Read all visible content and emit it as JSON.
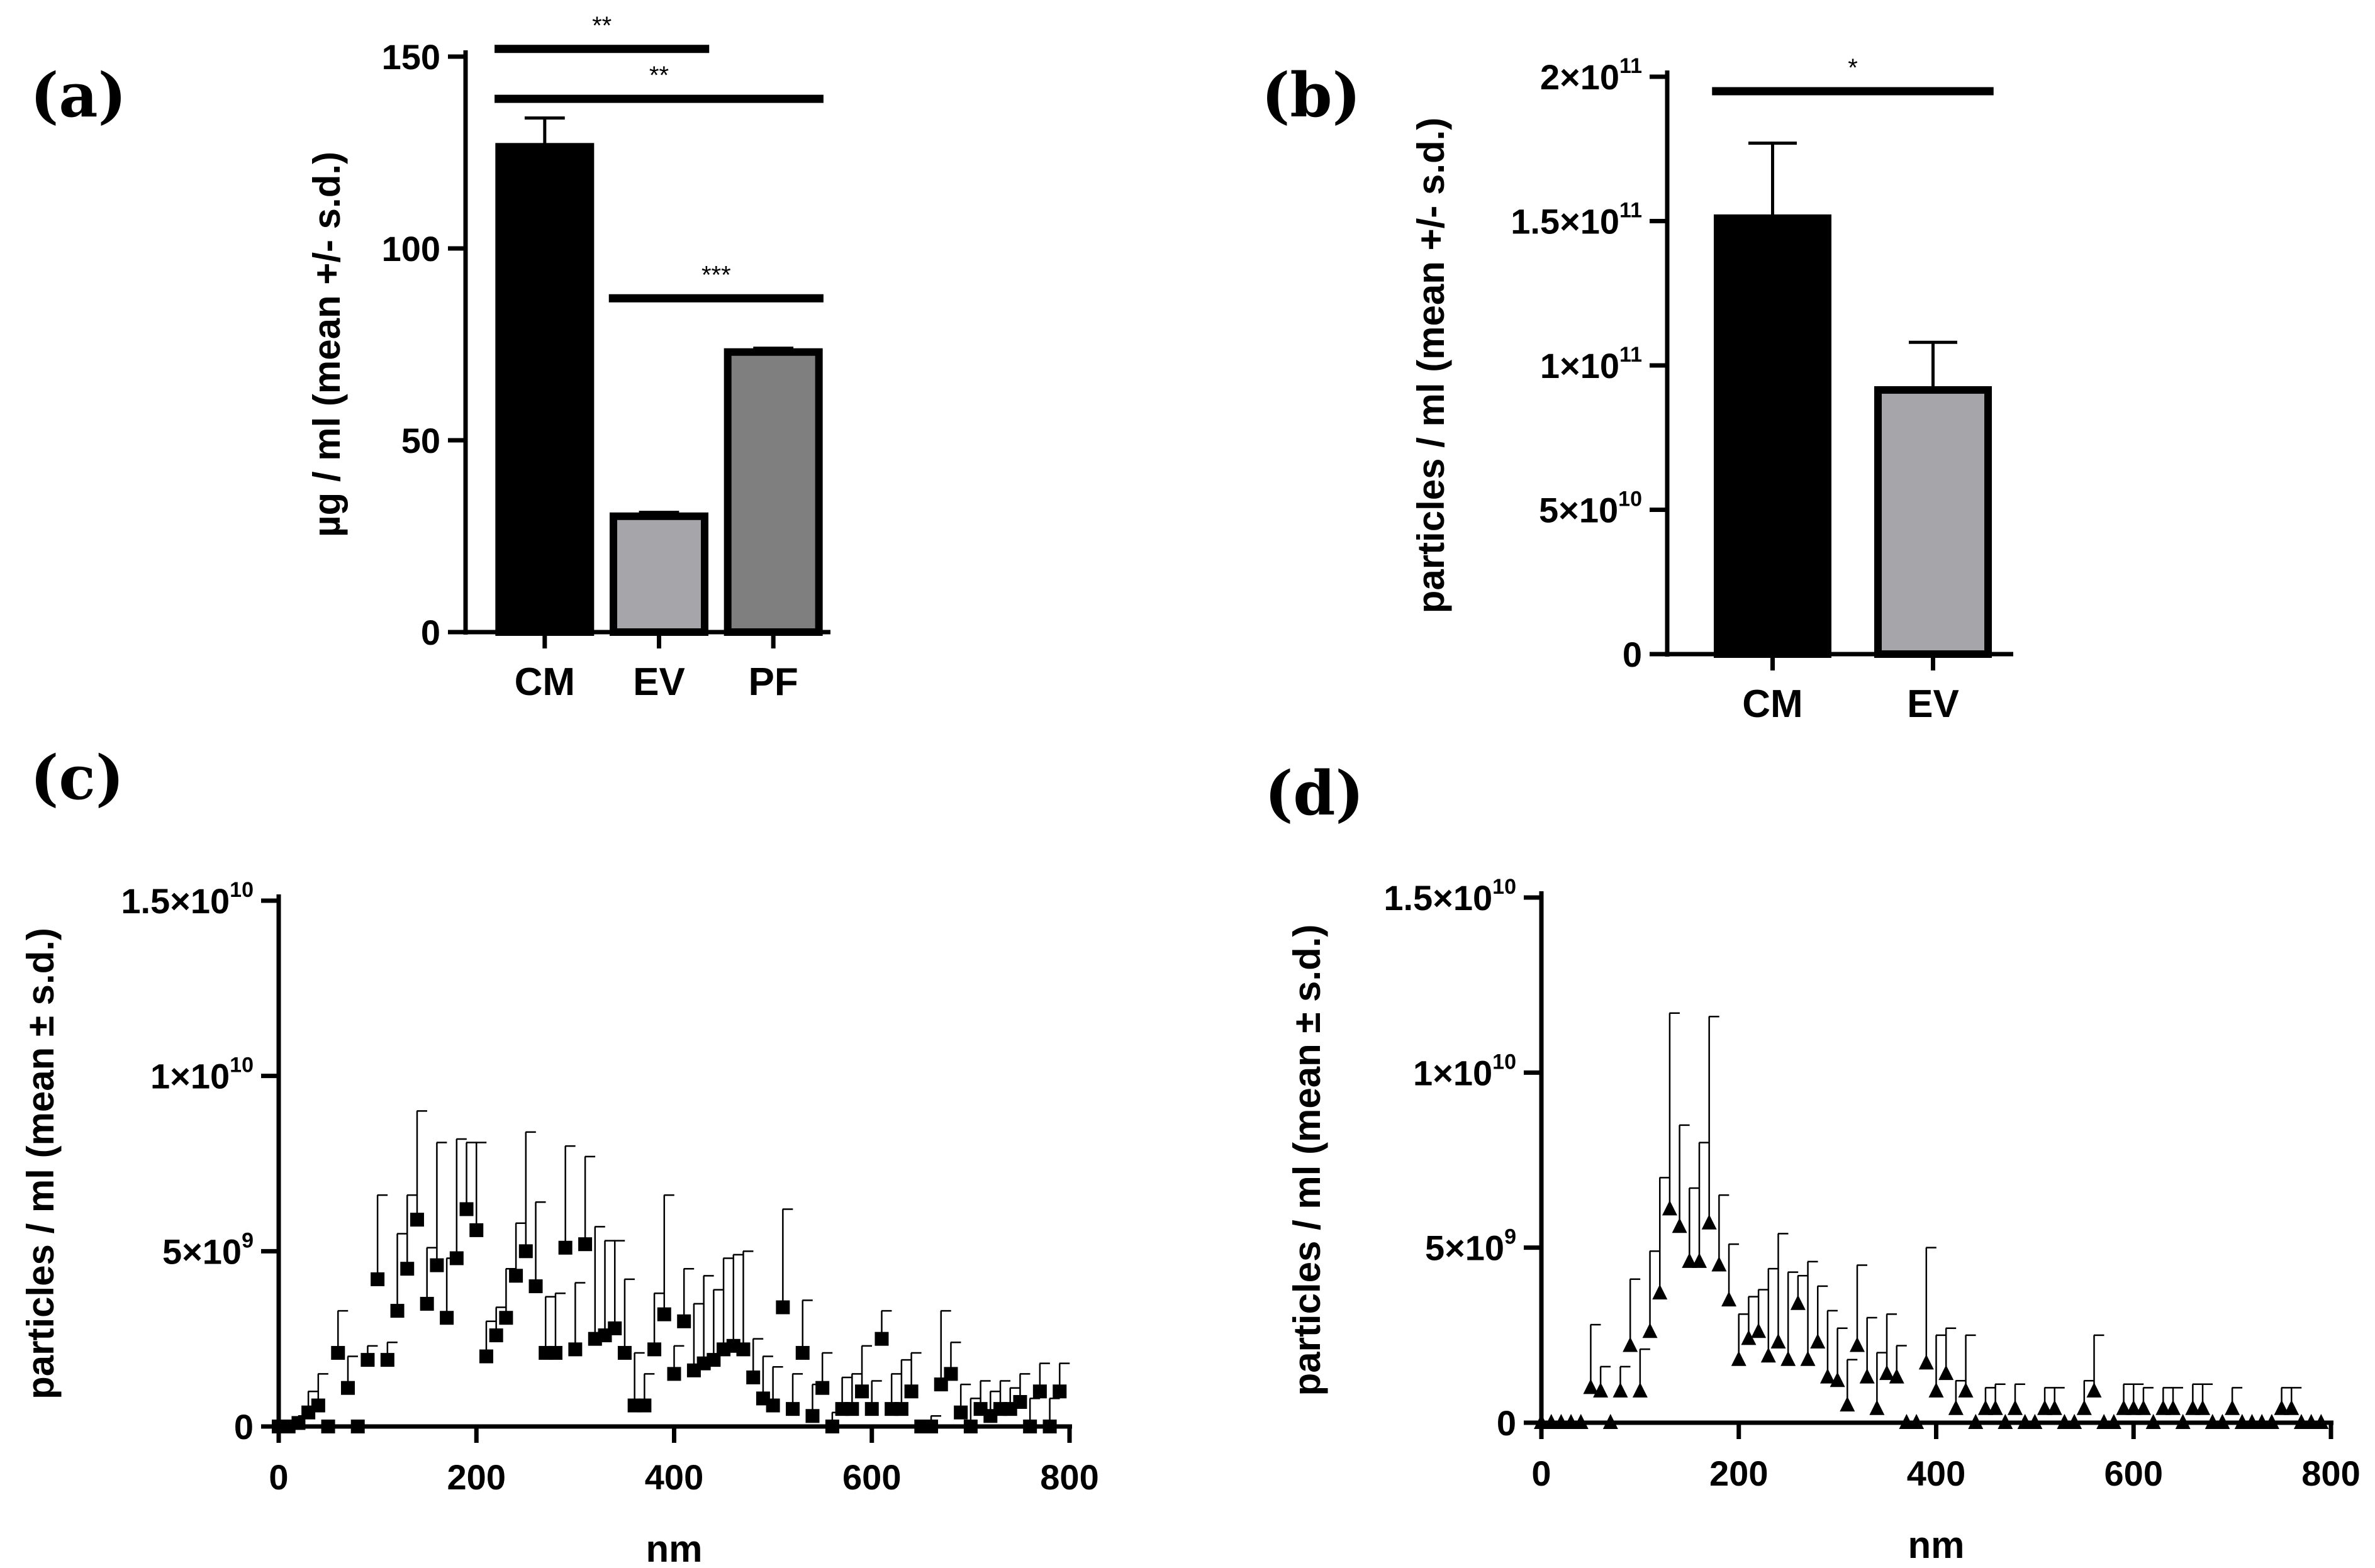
{
  "panels": [
    "(a)",
    "(b)",
    "(c)",
    "(d)"
  ],
  "chart_data": [
    {
      "type": "bar",
      "panel": "(a)",
      "categories": [
        "CM",
        "EV",
        "PF"
      ],
      "values": [
        126.5,
        30.2,
        73.0
      ],
      "errors": [
        7.5,
        1.0,
        1.0
      ],
      "colors": [
        "#000000",
        "#a6a6aa",
        "#7f7f7f"
      ],
      "ylabel": "µg / ml (mean +/- s.d.)",
      "ylim": [
        0,
        150
      ],
      "yticks": [
        0,
        50,
        100,
        150
      ],
      "ytick_labels": [
        "0",
        "50",
        "100",
        "150"
      ],
      "significance": [
        {
          "from": 0,
          "to": 1,
          "label": "**",
          "y": 152
        },
        {
          "from": 0,
          "to": 2,
          "label": "**",
          "y": 139
        },
        {
          "from": 1,
          "to": 2,
          "label": "***",
          "y": 87
        }
      ]
    },
    {
      "type": "bar",
      "panel": "(b)",
      "categories": [
        "CM",
        "EV"
      ],
      "values": [
        151000000000.0,
        91500000000.0
      ],
      "errors": [
        26000000000.0,
        16500000000.0
      ],
      "colors": [
        "#000000",
        "#a6a6aa"
      ],
      "ylabel": "particles / ml (mean +/- s.d.)",
      "ylim": [
        0,
        200000000000.0
      ],
      "yticks": [
        0,
        50000000000.0,
        100000000000.0,
        150000000000.0,
        200000000000.0
      ],
      "ytick_labels": [
        {
          "base": "0",
          "exp": ""
        },
        {
          "base": "5×10",
          "exp": "10"
        },
        {
          "base": "1×10",
          "exp": "11"
        },
        {
          "base": "1.5×10",
          "exp": "11"
        },
        {
          "base": "2×10",
          "exp": "11"
        }
      ],
      "significance": [
        {
          "from": 0,
          "to": 1,
          "label": "*",
          "y": 195000000000.0
        }
      ]
    },
    {
      "type": "scatter",
      "panel": "(c)",
      "marker": "square",
      "xlabel": "nm",
      "ylabel": "particles / ml (mean ± s.d.)",
      "xlim": [
        0,
        800
      ],
      "xticks": [
        0,
        200,
        400,
        600,
        800
      ],
      "ylim": [
        0,
        15000000000.0
      ],
      "yticks": [
        0,
        5000000000.0,
        10000000000.0,
        15000000000.0
      ],
      "ytick_labels": [
        {
          "base": "0",
          "exp": ""
        },
        {
          "base": "5×10",
          "exp": "9"
        },
        {
          "base": "1×10",
          "exp": "10"
        },
        {
          "base": "1.5×10",
          "exp": "10"
        }
      ],
      "x": [
        0,
        10,
        20,
        30,
        40,
        50,
        60,
        70,
        80,
        90,
        100,
        110,
        120,
        130,
        140,
        150,
        160,
        170,
        180,
        190,
        200,
        210,
        220,
        230,
        240,
        250,
        260,
        270,
        280,
        290,
        300,
        310,
        320,
        330,
        340,
        350,
        360,
        370,
        380,
        390,
        400,
        410,
        420,
        430,
        440,
        450,
        460,
        470,
        480,
        490,
        500,
        510,
        520,
        530,
        540,
        550,
        560,
        570,
        580,
        590,
        600,
        610,
        620,
        630,
        640,
        650,
        660,
        670,
        680,
        690,
        700,
        710,
        720,
        730,
        740,
        750,
        760,
        770,
        780,
        790
      ],
      "y": [
        0,
        0,
        100000000.0,
        400000000.0,
        600000000.0,
        0,
        2100000000.0,
        1100000000.0,
        0,
        1900000000.0,
        4200000000.0,
        1900000000.0,
        3300000000.0,
        4500000000.0,
        5900000000.0,
        3500000000.0,
        4600000000.0,
        3100000000.0,
        4800000000.0,
        6200000000.0,
        5600000000.0,
        2000000000.0,
        2600000000.0,
        3100000000.0,
        4300000000.0,
        5000000000.0,
        4000000000.0,
        2100000000.0,
        2100000000.0,
        5100000000.0,
        2200000000.0,
        5200000000.0,
        2500000000.0,
        2600000000.0,
        2800000000.0,
        2100000000.0,
        600000000.0,
        600000000.0,
        2200000000.0,
        3200000000.0,
        1500000000.0,
        3000000000.0,
        1600000000.0,
        1800000000.0,
        1900000000.0,
        2200000000.0,
        2300000000.0,
        2200000000.0,
        1400000000.0,
        800000000.0,
        600000000.0,
        3400000000.0,
        500000000.0,
        2100000000.0,
        300000000.0,
        1100000000.0,
        0,
        500000000.0,
        500000000.0,
        1000000000.0,
        500000000.0,
        2500000000.0,
        500000000.0,
        500000000.0,
        1000000000.0,
        0,
        0,
        1200000000.0,
        1500000000.0,
        400000000.0,
        0,
        500000000.0,
        300000000.0,
        500000000.0,
        500000000.0,
        700000000.0,
        0,
        1000000000.0,
        0,
        1000000000.0
      ],
      "err": [
        0,
        100000000.0,
        200000000.0,
        600000000.0,
        900000000.0,
        0,
        1200000000.0,
        900000000.0,
        0,
        400000000.0,
        2400000000.0,
        500000000.0,
        2200000000.0,
        2100000000.0,
        3100000000.0,
        1600000000.0,
        3500000000.0,
        1700000000.0,
        3400000000.0,
        1900000000.0,
        2500000000.0,
        1000000000.0,
        800000000.0,
        1400000000.0,
        1500000000.0,
        3400000000.0,
        2400000000.0,
        1600000000.0,
        1700000000.0,
        2900000000.0,
        1900000000.0,
        2500000000.0,
        3200000000.0,
        2700000000.0,
        2500000000.0,
        2100000000.0,
        1500000000.0,
        900000000.0,
        1600000000.0,
        3400000000.0,
        800000000.0,
        1500000000.0,
        1900000000.0,
        2500000000.0,
        2000000000.0,
        2600000000.0,
        2600000000.0,
        2800000000.0,
        1100000000.0,
        1200000000.0,
        1100000000.0,
        2800000000.0,
        1000000000.0,
        1500000000.0,
        900000000.0,
        1000000000.0,
        400000000.0,
        900000000.0,
        1000000000.0,
        1300000000.0,
        800000000.0,
        800000000.0,
        1000000000.0,
        1400000000.0,
        1100000000.0,
        0,
        300000000.0,
        2100000000.0,
        900000000.0,
        800000000.0,
        800000000.0,
        800000000.0,
        700000000.0,
        800000000.0,
        600000000.0,
        800000000.0,
        800000000.0,
        800000000.0,
        800000000.0,
        800000000.0
      ]
    },
    {
      "type": "scatter",
      "panel": "(d)",
      "marker": "triangle",
      "xlabel": "nm",
      "ylabel": "particles / ml (mean ± s.d.)",
      "xlim": [
        0,
        800
      ],
      "xticks": [
        0,
        200,
        400,
        600,
        800
      ],
      "ylim": [
        0,
        15000000000.0
      ],
      "yticks": [
        0,
        5000000000.0,
        10000000000.0,
        15000000000.0
      ],
      "ytick_labels": [
        {
          "base": "0",
          "exp": ""
        },
        {
          "base": "5×10",
          "exp": "9"
        },
        {
          "base": "1×10",
          "exp": "10"
        },
        {
          "base": "1.5×10",
          "exp": "10"
        }
      ],
      "x": [
        0,
        10,
        20,
        30,
        40,
        50,
        60,
        70,
        80,
        90,
        100,
        110,
        120,
        130,
        140,
        150,
        160,
        170,
        180,
        190,
        200,
        210,
        220,
        230,
        240,
        250,
        260,
        270,
        280,
        290,
        300,
        310,
        320,
        330,
        340,
        350,
        360,
        370,
        380,
        390,
        400,
        410,
        420,
        430,
        440,
        450,
        460,
        470,
        480,
        490,
        500,
        510,
        520,
        530,
        540,
        550,
        560,
        570,
        580,
        590,
        600,
        610,
        620,
        630,
        640,
        650,
        660,
        670,
        680,
        690,
        700,
        710,
        720,
        730,
        740,
        750,
        760,
        770,
        780,
        790
      ],
      "y": [
        0,
        0,
        0,
        0,
        0,
        1000000000.0,
        900000000.0,
        0,
        900000000.0,
        2200000000.0,
        900000000.0,
        2600000000.0,
        3700000000.0,
        6100000000.0,
        5600000000.0,
        4600000000.0,
        4600000000.0,
        5700000000.0,
        4500000000.0,
        3500000000.0,
        1800000000.0,
        2400000000.0,
        2600000000.0,
        1900000000.0,
        2300000000.0,
        1800000000.0,
        3400000000.0,
        1800000000.0,
        2300000000.0,
        1300000000.0,
        1200000000.0,
        500000000.0,
        2200000000.0,
        1300000000.0,
        400000000.0,
        1400000000.0,
        1300000000.0,
        0,
        0,
        1700000000.0,
        900000000.0,
        1400000000.0,
        400000000.0,
        900000000.0,
        0,
        400000000.0,
        400000000.0,
        0,
        400000000.0,
        0,
        0,
        400000000.0,
        400000000.0,
        0,
        0,
        400000000.0,
        900000000.0,
        0,
        0,
        400000000.0,
        400000000.0,
        400000000.0,
        0,
        400000000.0,
        400000000.0,
        0,
        400000000.0,
        400000000.0,
        0,
        0,
        400000000.0,
        0,
        0,
        0,
        0,
        400000000.0,
        400000000.0,
        0,
        0,
        0
      ],
      "err": [
        0,
        0,
        0,
        0,
        0,
        1800000000.0,
        700000000.0,
        0,
        700000000.0,
        1900000000.0,
        1200000000.0,
        2300000000.0,
        3300000000.0,
        5600000000.0,
        2900000000.0,
        2100000000.0,
        3400000000.0,
        5900000000.0,
        2000000000.0,
        1600000000.0,
        1300000000.0,
        1200000000.0,
        1200000000.0,
        2500000000.0,
        3100000000.0,
        2500000000.0,
        800000000.0,
        2800000000.0,
        1600000000.0,
        1900000000.0,
        1500000000.0,
        1300000000.0,
        2300000000.0,
        1700000000.0,
        1600000000.0,
        1700000000.0,
        900000000.0,
        0,
        0,
        3300000000.0,
        1600000000.0,
        1300000000.0,
        800000000.0,
        1600000000.0,
        0,
        600000000.0,
        700000000.0,
        0,
        700000000.0,
        0,
        0,
        600000000.0,
        600000000.0,
        0,
        0,
        800000000.0,
        1600000000.0,
        0,
        0,
        700000000.0,
        700000000.0,
        600000000.0,
        0,
        600000000.0,
        600000000.0,
        0,
        700000000.0,
        700000000.0,
        0,
        0,
        600000000.0,
        0,
        0,
        0,
        0,
        600000000.0,
        600000000.0,
        0,
        0,
        0
      ]
    }
  ]
}
